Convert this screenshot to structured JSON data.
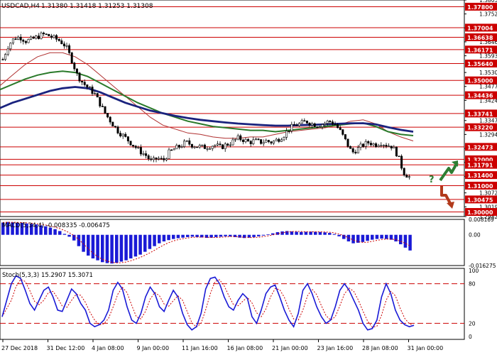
{
  "header": {
    "symbol_tf": "USDCAD,H4",
    "ohlc": "1.31380 1.31418 1.31253 1.31308"
  },
  "colors": {
    "up_arrow": "#2e7d32",
    "down_arrow": "#b23a1c",
    "level_label_bg": "#cc0000",
    "level_line": "#cc0000",
    "ma_fast": "#b03030",
    "ma_mid": "#2a7a2a",
    "ma_slow": "#1a237e",
    "macd_bar": "#1a1ad6",
    "macd_signal": "#cc0000",
    "stoch_main": "#1a1ad6",
    "stoch_signal": "#cc0000"
  },
  "chart_data": {
    "type": "candlestick",
    "price_axis": {
      "ylim": [
        1.29825,
        1.38055
      ],
      "ticks": [
        "1.38055",
        "1.37525",
        "1.36995",
        "1.36465",
        "1.35935",
        "1.35300",
        "1.34770",
        "1.34240",
        "1.33475",
        "1.32945",
        "1.32415",
        "1.31885",
        "1.31355",
        "1.30725",
        "1.30195",
        "1.29825"
      ],
      "levels": [
        {
          "label": "1.37800",
          "value": 1.378
        },
        {
          "label": "1.37004",
          "value": 1.37004
        },
        {
          "label": "1.36638",
          "value": 1.36638
        },
        {
          "label": "1.36171",
          "value": 1.36171
        },
        {
          "label": "1.35640",
          "value": 1.3564
        },
        {
          "label": "1.35000",
          "value": 1.35
        },
        {
          "label": "1.34436",
          "value": 1.34436
        },
        {
          "label": "1.33741",
          "value": 1.33741
        },
        {
          "label": "1.33220",
          "value": 1.3322
        },
        {
          "label": "1.32473",
          "value": 1.32473
        },
        {
          "label": "1.32000",
          "value": 1.32
        },
        {
          "label": "1.31791",
          "value": 1.31791
        },
        {
          "label": "1.31400",
          "value": 1.314
        },
        {
          "label": "1.31000",
          "value": 1.31
        },
        {
          "label": "1.30475",
          "value": 1.30475
        },
        {
          "label": "1.30000",
          "value": 1.3
        }
      ]
    },
    "x_labels": [
      "27 Dec 2018",
      "31 Dec 12:00",
      "4 Jan 08:00",
      "9 Jan 00:00",
      "11 Jan 16:00",
      "16 Jan 08:00",
      "21 Jan 00:00",
      "23 Jan 16:00",
      "28 Jan 08:00",
      "31 Jan 00:00"
    ],
    "price_path": [
      1.358,
      1.3635,
      1.366,
      1.3665,
      1.365,
      1.3655,
      1.3665,
      1.3675,
      1.367,
      1.366,
      1.365,
      1.363,
      1.358,
      1.352,
      1.349,
      1.347,
      1.345,
      1.341,
      1.337,
      1.334,
      1.331,
      1.329,
      1.327,
      1.325,
      1.323,
      1.3215,
      1.319,
      1.3205,
      1.3195,
      1.3225,
      1.324,
      1.325,
      1.3265,
      1.3255,
      1.325,
      1.3245,
      1.325,
      1.3255,
      1.3245,
      1.3255,
      1.3265,
      1.328,
      1.3275,
      1.3265,
      1.327,
      1.3265,
      1.327,
      1.3265,
      1.3275,
      1.329,
      1.3315,
      1.333,
      1.3335,
      1.3345,
      1.3335,
      1.333,
      1.3335,
      1.3345,
      1.3335,
      1.3305,
      1.3265,
      1.3225,
      1.324,
      1.3255,
      1.3265,
      1.3255,
      1.3265,
      1.3255,
      1.325,
      1.3215,
      1.315,
      1.3133
    ],
    "moving_averages": [
      {
        "name": "ma_fast",
        "values": [
          1.348,
          1.352,
          1.356,
          1.359,
          1.3605,
          1.3605,
          1.359,
          1.356,
          1.352,
          1.348,
          1.344,
          1.34,
          1.336,
          1.333,
          1.3315,
          1.33,
          1.3295,
          1.3285,
          1.328,
          1.328,
          1.3285,
          1.3285,
          1.3295,
          1.3305,
          1.331,
          1.3315,
          1.332,
          1.333,
          1.3345,
          1.335,
          1.3335,
          1.3305,
          1.3285,
          1.327
        ]
      },
      {
        "name": "ma_mid",
        "values": [
          1.3465,
          1.3485,
          1.3505,
          1.352,
          1.353,
          1.3535,
          1.353,
          1.3515,
          1.349,
          1.3465,
          1.344,
          1.3415,
          1.3395,
          1.3375,
          1.336,
          1.3345,
          1.3335,
          1.3325,
          1.332,
          1.3315,
          1.331,
          1.331,
          1.3305,
          1.331,
          1.3315,
          1.332,
          1.3325,
          1.333,
          1.3335,
          1.3338,
          1.3325,
          1.3305,
          1.3295,
          1.329
        ]
      },
      {
        "name": "ma_slow",
        "values": [
          1.3395,
          1.3415,
          1.343,
          1.3445,
          1.346,
          1.347,
          1.3475,
          1.347,
          1.3455,
          1.3435,
          1.3415,
          1.34,
          1.3385,
          1.3375,
          1.3365,
          1.3357,
          1.335,
          1.3345,
          1.334,
          1.3336,
          1.3333,
          1.333,
          1.3328,
          1.3328,
          1.333,
          1.3331,
          1.3333,
          1.3335,
          1.3337,
          1.3337,
          1.3333,
          1.3322,
          1.3312,
          1.3305
        ]
      }
    ],
    "macd": {
      "label": "MACD(5,34,4) -0.008335 -0.006475",
      "ylim": [
        -0.016275,
        0.008169
      ],
      "ticks": [
        "0.008169",
        "0.00",
        "-0.016275"
      ],
      "histogram": [
        0.0065,
        0.0068,
        0.0066,
        0.0064,
        0.0063,
        0.006,
        0.0058,
        0.0055,
        0.005,
        0.0045,
        0.0038,
        0.003,
        0.002,
        0.0005,
        -0.001,
        -0.003,
        -0.006,
        -0.009,
        -0.011,
        -0.0125,
        -0.0135,
        -0.0145,
        -0.015,
        -0.0152,
        -0.0148,
        -0.0142,
        -0.0135,
        -0.0125,
        -0.0115,
        -0.0105,
        -0.009,
        -0.0075,
        -0.006,
        -0.0045,
        -0.0035,
        -0.0028,
        -0.0022,
        -0.0018,
        -0.0015,
        -0.0012,
        -0.001,
        -0.0012,
        -0.0014,
        -0.0016,
        -0.0015,
        -0.0012,
        -0.001,
        -0.0008,
        -0.0009,
        -0.0012,
        -0.0015,
        -0.0017,
        -0.0015,
        -0.0012,
        -0.0008,
        -0.0004,
        0.0002,
        0.0008,
        0.0014,
        0.0018,
        0.002,
        0.0018,
        0.0016,
        0.0015,
        0.0016,
        0.0017,
        0.0016,
        0.0015,
        0.0013,
        0.001,
        0.0004,
        -0.0008,
        -0.0022,
        -0.0035,
        -0.0045,
        -0.0042,
        -0.0038,
        -0.0032,
        -0.0026,
        -0.0022,
        -0.002,
        -0.0022,
        -0.0026,
        -0.0035,
        -0.005,
        -0.0068,
        -0.0083
      ]
    },
    "stochastic": {
      "label": "Stoch(5,3,3) 15.2907 15.3071",
      "ylim": [
        0,
        100
      ],
      "ticks": [
        "100",
        "80",
        "20",
        "0"
      ],
      "dashed_levels": [
        80,
        20
      ],
      "main": [
        30,
        55,
        80,
        92,
        88,
        70,
        50,
        40,
        55,
        70,
        75,
        60,
        40,
        38,
        55,
        72,
        65,
        50,
        40,
        20,
        15,
        18,
        25,
        40,
        70,
        82,
        72,
        45,
        25,
        20,
        35,
        60,
        75,
        65,
        45,
        38,
        55,
        70,
        60,
        35,
        18,
        10,
        15,
        35,
        72,
        88,
        90,
        80,
        60,
        45,
        40,
        55,
        65,
        58,
        30,
        20,
        40,
        65,
        75,
        78,
        60,
        40,
        25,
        15,
        35,
        70,
        80,
        65,
        45,
        30,
        20,
        25,
        45,
        70,
        80,
        70,
        55,
        40,
        20,
        10,
        12,
        25,
        60,
        80,
        65,
        40,
        25,
        18,
        15,
        17
      ]
    },
    "annotations": {
      "up_arrow_level": 1.314,
      "down_arrow_level": 1.31,
      "question_mark": "?"
    }
  }
}
